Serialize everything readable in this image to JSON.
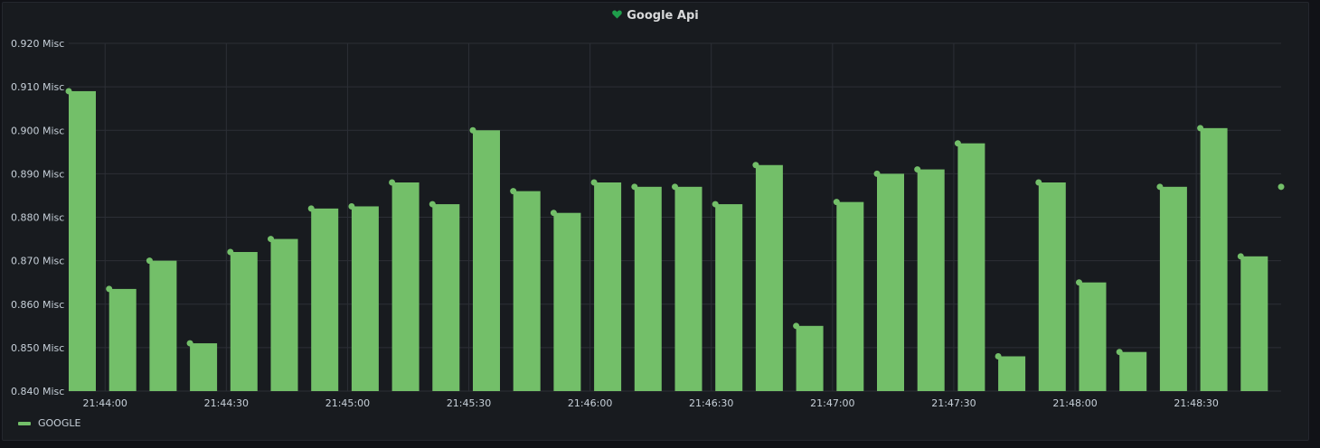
{
  "panel": {
    "title": "Google Api",
    "title_icon": "heart-icon"
  },
  "colors": {
    "background": "#111217",
    "panel": "#181b1f",
    "series": "#73bf69",
    "grid": "#2c2f36",
    "text": "#c7d0d9"
  },
  "legend": {
    "items": [
      {
        "label": "GOOGLE",
        "color": "#73bf69"
      }
    ],
    "placement": "bottom-left"
  },
  "chart_data": {
    "type": "bar",
    "title": "Google Api",
    "xlabel": "",
    "ylabel": "",
    "unit": "Misc",
    "ylim": [
      0.84,
      0.92
    ],
    "yticks": [
      "0.840 Misc",
      "0.850 Misc",
      "0.860 Misc",
      "0.870 Misc",
      "0.880 Misc",
      "0.890 Misc",
      "0.900 Misc",
      "0.910 Misc",
      "0.920 Misc"
    ],
    "ytick_values": [
      0.84,
      0.85,
      0.86,
      0.87,
      0.88,
      0.89,
      0.9,
      0.91,
      0.92
    ],
    "xlim": [
      "21:43:51",
      "21:48:51"
    ],
    "xticks": [
      "21:44:00",
      "21:44:30",
      "21:45:00",
      "21:45:30",
      "21:46:00",
      "21:46:30",
      "21:47:00",
      "21:47:30",
      "21:48:00",
      "21:48:30"
    ],
    "grid": true,
    "series": [
      {
        "name": "GOOGLE",
        "color": "#73bf69",
        "x": [
          "21:43:51",
          "21:44:01",
          "21:44:11",
          "21:44:21",
          "21:44:31",
          "21:44:41",
          "21:44:51",
          "21:45:01",
          "21:45:11",
          "21:45:21",
          "21:45:31",
          "21:45:41",
          "21:45:51",
          "21:46:01",
          "21:46:11",
          "21:46:21",
          "21:46:31",
          "21:46:41",
          "21:46:51",
          "21:47:01",
          "21:47:11",
          "21:47:21",
          "21:47:31",
          "21:47:41",
          "21:47:51",
          "21:48:01",
          "21:48:11",
          "21:48:21",
          "21:48:31",
          "21:48:41",
          "21:48:51"
        ],
        "values": [
          0.909,
          0.8635,
          0.87,
          0.851,
          0.872,
          0.875,
          0.882,
          0.8825,
          0.888,
          0.883,
          0.9,
          0.886,
          0.881,
          0.888,
          0.887,
          0.887,
          0.883,
          0.892,
          0.855,
          0.8835,
          0.89,
          0.891,
          0.897,
          0.848,
          0.888,
          0.865,
          0.849,
          0.887,
          0.9005,
          0.871,
          0.887
        ]
      }
    ]
  }
}
